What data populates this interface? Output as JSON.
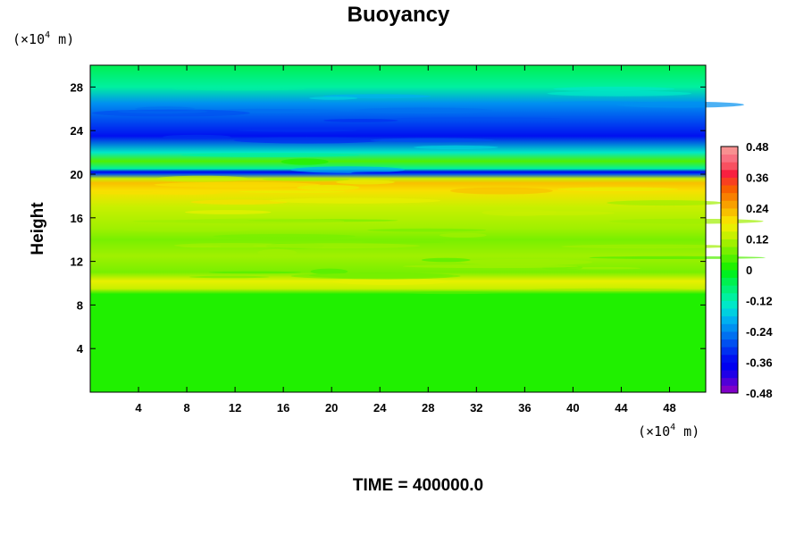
{
  "chart_data": {
    "type": "heatmap",
    "title": "Buoyancy",
    "ylabel": "Height",
    "y_unit": {
      "prefix": "(×10",
      "exp": "4",
      "suffix": " m)"
    },
    "x_unit": {
      "prefix": "(×10",
      "exp": "4",
      "suffix": " m)"
    },
    "xlim": [
      0,
      51
    ],
    "ylim": [
      0,
      30
    ],
    "x_ticks": [
      4,
      8,
      12,
      16,
      20,
      24,
      28,
      32,
      36,
      40,
      44,
      48
    ],
    "y_ticks": [
      4,
      8,
      12,
      16,
      20,
      24,
      28
    ],
    "x_tick_labels": [
      "4",
      "8",
      "12",
      "16",
      "20",
      "24",
      "28",
      "32",
      "36",
      "40",
      "44",
      "48"
    ],
    "y_tick_labels": [
      "4",
      "8",
      "12",
      "16",
      "20",
      "24",
      "28"
    ],
    "colorbar": {
      "min": -0.48,
      "max": 0.48,
      "levels": 32,
      "tick_values": [
        0.48,
        0.36,
        0.24,
        0.12,
        0,
        -0.12,
        -0.24,
        -0.36,
        -0.48
      ],
      "tick_labels": [
        "0.48",
        "0.36",
        "0.24",
        "0.12",
        "0",
        "-0.12",
        "-0.24",
        "-0.36",
        "-0.48"
      ],
      "colors": [
        "#7f00c8",
        "#5000d8",
        "#2000e8",
        "#0000f0",
        "#0010f0",
        "#0030f0",
        "#0050f0",
        "#0070f0",
        "#0090f0",
        "#00b0f0",
        "#00d0e0",
        "#00e8c8",
        "#00f0a0",
        "#00f078",
        "#00f050",
        "#00f020",
        "#20f000",
        "#50f000",
        "#78f000",
        "#a0f000",
        "#c8f000",
        "#e8f000",
        "#f8e000",
        "#f8c000",
        "#f8a000",
        "#f88000",
        "#f86000",
        "#f84020",
        "#f82040",
        "#f85060",
        "#f87080",
        "#f89090"
      ]
    },
    "vertical_profile": [
      {
        "height": 0,
        "value": 0.01
      },
      {
        "height": 9,
        "value": 0.02
      },
      {
        "height": 9.5,
        "value": 0.13
      },
      {
        "height": 10.2,
        "value": 0.16
      },
      {
        "height": 11,
        "value": 0.06
      },
      {
        "height": 12.5,
        "value": 0.09
      },
      {
        "height": 14,
        "value": 0.08
      },
      {
        "height": 15,
        "value": 0.1
      },
      {
        "height": 17,
        "value": 0.13
      },
      {
        "height": 18.5,
        "value": 0.2
      },
      {
        "height": 19.2,
        "value": 0.22
      },
      {
        "height": 19.6,
        "value": 0.12
      },
      {
        "height": 20.0,
        "value": -0.3
      },
      {
        "height": 20.2,
        "value": -0.38
      },
      {
        "height": 20.5,
        "value": -0.1
      },
      {
        "height": 21.2,
        "value": 0.04
      },
      {
        "height": 22.0,
        "value": -0.14
      },
      {
        "height": 23.5,
        "value": -0.34
      },
      {
        "height": 25.0,
        "value": -0.3
      },
      {
        "height": 26.5,
        "value": -0.22
      },
      {
        "height": 28.0,
        "value": -0.12
      },
      {
        "height": 30,
        "value": -0.06
      }
    ]
  },
  "footer": {
    "time_label": "TIME = 400000.0"
  }
}
